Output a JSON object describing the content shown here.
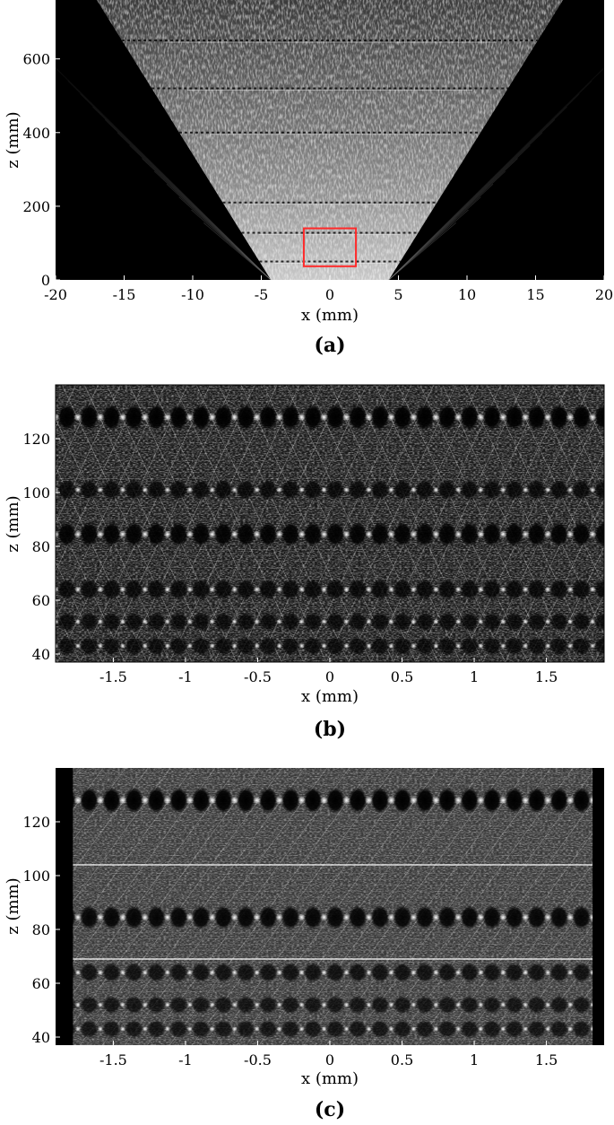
{
  "chart_data": [
    {
      "type": "heatmap",
      "caption": "(a)",
      "xlabel": "x (mm)",
      "ylabel": "z (mm)",
      "xlim": [
        -20,
        20
      ],
      "ylim": [
        0,
        760
      ],
      "xticks": [
        -20,
        -15,
        -10,
        -5,
        0,
        5,
        10,
        15,
        20
      ],
      "xtick_labels": [
        "-20",
        "-15",
        "-10",
        "-5",
        "0",
        "5",
        "10",
        "15",
        "20"
      ],
      "yticks": [
        0,
        200,
        400,
        600
      ],
      "ytick_labels": [
        "0",
        "200",
        "400",
        "600"
      ],
      "colormap": "grayscale",
      "field_aperture_half_width": 4.3,
      "cone_edge_at_top": 17,
      "focal_band_z": [
        50,
        128,
        210,
        400,
        520,
        650
      ],
      "highlight_box": {
        "x": [
          -1.9,
          1.9
        ],
        "z": [
          37,
          140
        ],
        "color": "#ff2a2a"
      }
    },
    {
      "type": "heatmap",
      "caption": "(b)",
      "xlabel": "x (mm)",
      "ylabel": "z (mm)",
      "xlim": [
        -1.9,
        1.9
      ],
      "ylim": [
        37,
        140
      ],
      "xticks": [
        -1.5,
        -1,
        -0.5,
        0,
        0.5,
        1,
        1.5
      ],
      "xtick_labels": [
        "-1.5",
        "-1",
        "-0.5",
        "0",
        "0.5",
        "1",
        "1.5"
      ],
      "yticks": [
        40,
        60,
        80,
        100,
        120
      ],
      "ytick_labels": [
        "40",
        "60",
        "80",
        "100",
        "120"
      ],
      "colormap": "grayscale",
      "period_x": 0.155,
      "focal_rows": [
        {
          "z": 128,
          "strength": 1.0
        },
        {
          "z": 101,
          "strength": 0.55
        },
        {
          "z": 84.5,
          "strength": 0.9
        },
        {
          "z": 64,
          "strength": 0.6
        },
        {
          "z": 52,
          "strength": 0.45
        },
        {
          "z": 43,
          "strength": 0.45
        }
      ]
    },
    {
      "type": "heatmap",
      "caption": "(c)",
      "xlabel": "x (mm)",
      "ylabel": "z (mm)",
      "xlim": [
        -1.9,
        1.9
      ],
      "ylim": [
        37,
        140
      ],
      "xticks": [
        -1.5,
        -1,
        -0.5,
        0,
        0.5,
        1,
        1.5
      ],
      "xtick_labels": [
        "-1.5",
        "-1",
        "-0.5",
        "0",
        "0.5",
        "1",
        "1.5"
      ],
      "yticks": [
        40,
        60,
        80,
        100,
        120
      ],
      "ytick_labels": [
        "40",
        "60",
        "80",
        "100",
        "120"
      ],
      "colormap": "grayscale",
      "period_x": 0.155,
      "black_margins_x": [
        [
          -1.9,
          -1.78
        ],
        [
          1.82,
          1.9
        ]
      ],
      "focal_rows": [
        {
          "z": 128,
          "strength": 1.0
        },
        {
          "z": 84.5,
          "strength": 0.85
        },
        {
          "z": 64,
          "strength": 0.5
        },
        {
          "z": 52,
          "strength": 0.4
        },
        {
          "z": 43,
          "strength": 0.4
        }
      ],
      "white_lines_z": [
        104,
        69
      ]
    }
  ]
}
